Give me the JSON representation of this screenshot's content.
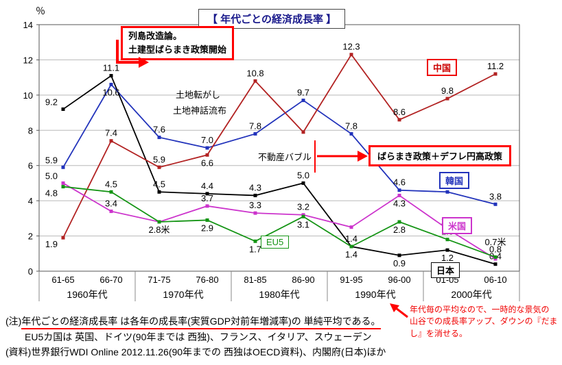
{
  "chart_data": {
    "type": "line",
    "title": "【 年代ごとの経済成長率 】",
    "y_unit": "％",
    "ylim": [
      0,
      14
    ],
    "ytick_step": 2,
    "grid": true,
    "legend_position": "inline-tags",
    "categories": [
      "61-65",
      "66-70",
      "71-75",
      "76-80",
      "81-85",
      "86-90",
      "91-95",
      "96-00",
      "01-05",
      "06-10"
    ],
    "decades": [
      "1960年代",
      "1970年代",
      "1980年代",
      "1990年代",
      "2000年代"
    ],
    "series": [
      {
        "name": "日本",
        "color": "#000000",
        "values": [
          9.2,
          11.1,
          4.5,
          4.4,
          4.3,
          5.0,
          1.4,
          0.9,
          1.2,
          0.4
        ],
        "labels": [
          "9.2",
          "11.1",
          "4.5",
          "4.4",
          "4.3",
          "5.0",
          "1.4",
          "0.9",
          "1.2",
          "0.4"
        ],
        "label_pos": [
          "l",
          "a",
          "a",
          "a",
          "a",
          "a",
          "b",
          "b",
          "b",
          "a"
        ]
      },
      {
        "name": "韓国",
        "color": "#2233bb",
        "values": [
          5.9,
          10.6,
          7.6,
          7.0,
          7.8,
          9.7,
          7.8,
          4.6,
          4.5,
          3.8
        ],
        "labels": [
          "5.9",
          "10.6",
          "7.6",
          "7.0",
          "7.8",
          "9.7",
          "7.8",
          "4.6",
          "4.5",
          "3.8"
        ],
        "label_pos": [
          "l",
          "b",
          "a",
          "a",
          "a",
          "a",
          "a",
          "a",
          "a",
          "a"
        ]
      },
      {
        "name": "中国",
        "color": "#b22222",
        "values": [
          1.9,
          7.4,
          5.9,
          6.6,
          10.8,
          7.9,
          12.3,
          8.6,
          9.8,
          11.2
        ],
        "labels": [
          "1.9",
          "7.4",
          "5.9",
          "6.6",
          "10.8",
          "",
          "12.3",
          "8.6",
          "9.8",
          "11.2"
        ],
        "label_pos": [
          "bl",
          "a",
          "a",
          "b",
          "a",
          "a",
          "a",
          "a",
          "a",
          "a"
        ]
      },
      {
        "name": "米国",
        "color": "#cc33cc",
        "values": [
          5.0,
          3.4,
          2.8,
          3.7,
          3.3,
          3.2,
          2.5,
          4.3,
          2.4,
          0.7
        ],
        "labels": [
          "5.0",
          "3.4",
          "2.8米",
          "3.7",
          "3.3",
          "3.2",
          "",
          "4.3",
          "2.4",
          "0.7米"
        ],
        "label_pos": [
          "l",
          "a",
          "b",
          "a",
          "a",
          "a",
          "a",
          "b",
          "a",
          "aa"
        ]
      },
      {
        "name": "EU5",
        "color": "#149414",
        "values": [
          4.8,
          4.5,
          2.8,
          2.9,
          1.7,
          3.1,
          1.4,
          2.8,
          1.8,
          0.8
        ],
        "labels": [
          "4.8",
          "4.5",
          "",
          "2.9",
          "1.7",
          "3.1",
          "1.4",
          "2.8",
          "1.8",
          "0.8"
        ],
        "label_pos": [
          "bl",
          "a",
          "a",
          "b",
          "b",
          "b",
          "a",
          "b",
          "a",
          "a"
        ]
      }
    ]
  },
  "annotations": {
    "retto_line1": "列島改造論。",
    "retto_line2": "土建型ばらまき政策開始",
    "tochi_korogashi": "土地転がし",
    "tochi_shinwa": "土地神話流布",
    "fudosan_bubble": "不動産バブル",
    "baramaki_box": "ばらまき政策＋デフレ円高政策"
  },
  "notes": {
    "note1_prefix": "(注)",
    "note1_underlined": "年代ごとの経済成長率 は各年の成長率(実質GDP対前年増減率)の 単純平均である。",
    "note2": "EU5カ国は 英国、ドイツ(90年までは 西独)、フランス、イタリア、スウェーデン",
    "note3": "(資料)世界銀行WDI Online  2012.11.26(90年までの 西独はOECD資料)、内閣府(日本)ほか",
    "red_comment_lines": [
      "年代毎の平均なので、一時的な景気の",
      "山谷での成長率アップ、ダウンの『だま",
      "し』を消せる。"
    ]
  },
  "colors": {
    "annotation_red": "#ff0000",
    "grid_line": "#b8b8b8",
    "title_text": "#1a1a8c",
    "red_comment_text": "#f00000"
  }
}
